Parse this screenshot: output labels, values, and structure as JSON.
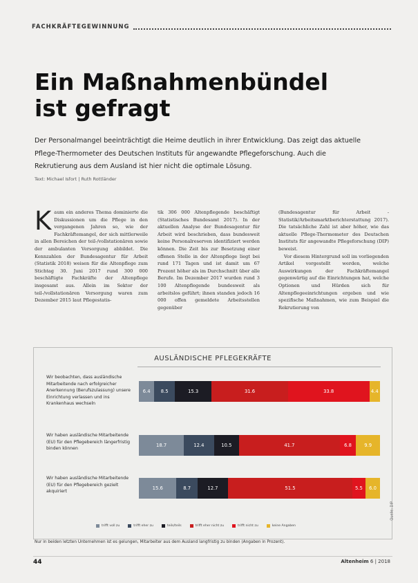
{
  "header": {
    "kicker": "FACHKRÄFTEGEWINNUNG"
  },
  "article": {
    "title": "Ein Maßnahmenbündel ist gefragt",
    "lead": "Der Personalmangel beeinträchtigt die Heime deutlich in ihrer Entwicklung. Das zeigt das aktuelle Pflege-Thermometer des Deutschen Instituts für angewandte Pflegeforschung. Auch die Rekrutierung aus dem Ausland ist hier nicht die optimale Lösung.",
    "byline": "Text: Michael Isfort | Ruth Rottländer",
    "dropcap": "K",
    "col1": "aum ein anderes Thema dominierte die Diskussionen um die Pflege in den vergangenen Jahren so, wie der Fachkräftemangel, der sich mittlerweile in allen Bereichen der teil-/vollstationären sowie der ambulanten Versorgung abbildet. Die Kennzahlen der Bundesagentur für Arbeit (Statistik 2018) weisen für die Altenpflege zum Stichtag 30. Juni 2017 rund 300 000 beschäftigte Fachkräfte der Altenpflege insgesamt aus. Allein im Sektor der teil-/vollstationären Versorgung waren zum Dezember 2015 laut Pflegestatis-",
    "col2": "tik 306 000 Altenpflegende beschäftigt (Statistisches Bundesamt 2017). In der aktuellen Analyse der Bundesagentur für Arbeit wird beschrieben, dass bundesweit keine Personalreserven identifiziert werden können. Die Zeit bis zur Besetzung einer offenen Stelle in der Altenpflege liegt bei rund 171 Tagen und ist damit um 67 Prozent höher als im Durchschnitt über alle Berufe. Im Dezember 2017 wurden rund 3 100 Altenpflegende bundesweit als arbeitslos geführt; ihnen standen jedoch 16 000 offen gemeldete Arbeitsstellen gegenüber",
    "col3_p1": "(Bundesagentur für Arbeit -Statistik/Arbeitsmarktberichterstattung 2017). Die tatsächliche Zahl ist aber höher, wie das aktuelle Pflege-Thermometer des Deutschen Instituts für angewandte Pflegeforschung (DIP) beweist.",
    "col3_p2": "Vor diesem Hintergrund soll im vorliegenden Artikel vorgestellt werden, welche Auswirkungen der Fachkräftemangel gegenwärtig auf die Einrichtungen hat, welche Optionen und Hürden sich für Altenpflegeeinrichtungen ergeben und wie spezifische Maßnahmen, wie zum Beispiel die Rekrutierung von"
  },
  "chart_data": {
    "type": "bar",
    "orientation": "horizontal",
    "stacked": true,
    "title": "AUSLÄNDISCHE PFLEGEKRÄFTE",
    "source": "Quelle: DIP",
    "categories": [
      "Wir beobachten, dass ausländische Mitarbeitende nach erfolgreicher Anerkennung (Berufszulassung) unsere Einrichtung verlassen und ins Krankenhaus wechseln",
      "Wir haben ausländische Mitarbeitende (EU) für den Pflegebereich längerfristig binden können",
      "Wir haben ausländische Mitarbeitende (EU) für den Pflegebereich gezielt akquiriert"
    ],
    "series": [
      {
        "name": "trifft voll zu",
        "color": "#7d8a99",
        "values": [
          6.4,
          18.7,
          15.6
        ]
      },
      {
        "name": "trifft eher zu",
        "color": "#3b4a5e",
        "values": [
          8.5,
          12.4,
          8.7
        ]
      },
      {
        "name": "teils/teils",
        "color": "#1c1c24",
        "values": [
          15.3,
          10.5,
          12.7
        ]
      },
      {
        "name": "trifft eher nicht zu",
        "color": "#c81e1e",
        "values": [
          31.6,
          41.7,
          51.5
        ]
      },
      {
        "name": "trifft nicht zu",
        "color": "#e0141e",
        "values": [
          33.8,
          6.8,
          5.5
        ]
      },
      {
        "name": "keine Angaben",
        "color": "#e6b52a",
        "values": [
          4.4,
          9.9,
          6.0
        ]
      }
    ],
    "bar_labels": [
      [
        "6.4",
        "8.5",
        "15.3",
        "31.6",
        "33.8",
        "4.4"
      ],
      [
        "18.7",
        "12.4",
        "10.5",
        "41.7",
        "6.8",
        "9.9"
      ],
      [
        "15.6",
        "8.7",
        "12.7",
        "51.5",
        "5.5",
        "6.0"
      ]
    ]
  },
  "caption": "Nur in beiden letzten Unternehmen ist es gelungen, Mitarbeiter aus dem Ausland langfristig zu binden (Angaben in Prozent).",
  "footer": {
    "page_number": "44",
    "magazine": "Altenheim",
    "issue": "6 | 2018"
  }
}
